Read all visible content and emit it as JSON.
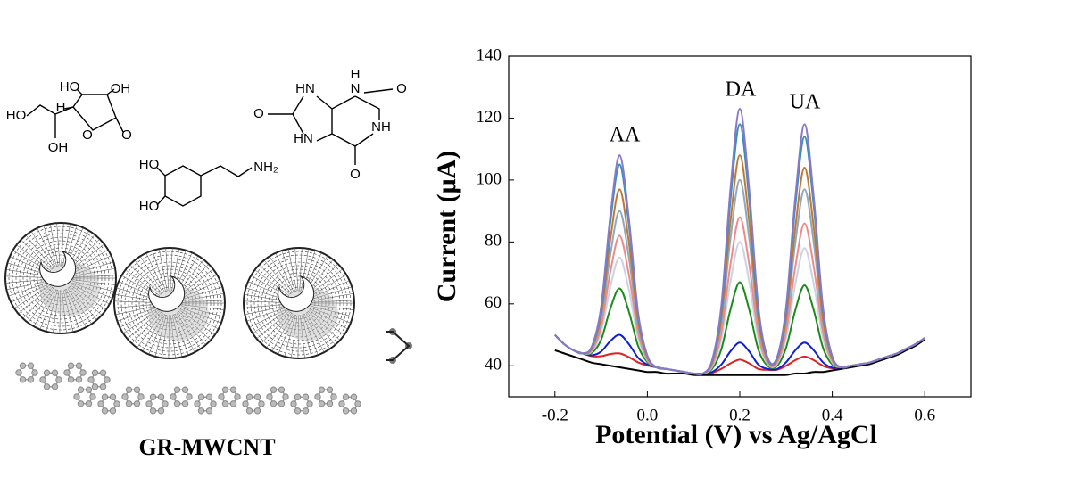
{
  "illustration": {
    "ascorbic_acid": [
      "HO",
      "OH",
      "HO",
      "H",
      "O",
      "O",
      "OH"
    ],
    "dopamine": [
      "HO",
      "HO",
      "NH₂"
    ],
    "uric_acid": [
      "HN",
      "H",
      "N",
      "O",
      "O",
      "NH",
      "HN",
      "O"
    ],
    "label": "GR-MWCNT"
  },
  "chart_data": {
    "type": "line",
    "xlabel": "Potential (V) vs Ag/AgCl",
    "ylabel": "Current (μA)",
    "annotations": [
      "AA",
      "DA",
      "UA"
    ],
    "xlim": [
      -0.3,
      0.7
    ],
    "ylim": [
      30,
      140
    ],
    "xticks": [
      -0.2,
      {
        "value": 0,
        "label": "0.0"
      },
      0.2,
      0.4,
      0.6
    ],
    "yticks": [
      40,
      60,
      80,
      100,
      120,
      140
    ],
    "x": [
      -0.2,
      -0.18,
      -0.16,
      -0.14,
      -0.12,
      -0.1,
      -0.08,
      -0.06,
      -0.04,
      -0.02,
      0,
      0.02,
      0.04,
      0.06,
      0.08,
      0.1,
      0.12,
      0.14,
      0.16,
      0.18,
      0.2,
      0.22,
      0.24,
      0.26,
      0.28,
      0.3,
      0.32,
      0.34,
      0.36,
      0.38,
      0.4,
      0.42,
      0.44,
      0.46,
      0.48,
      0.5,
      0.52,
      0.54,
      0.56,
      0.58,
      0.6
    ],
    "series": [
      {
        "color": "#000000",
        "values": [
          45,
          44,
          43,
          42,
          41,
          40.5,
          40,
          39.5,
          39,
          38.5,
          38,
          38,
          37.5,
          37.5,
          37.5,
          37,
          37,
          37,
          37,
          37,
          37,
          37,
          37,
          37,
          37,
          37,
          37.5,
          37.5,
          38,
          38,
          38.5,
          39,
          39.5,
          40,
          40.5,
          41.5,
          42.5,
          43.5,
          45,
          46.5,
          48.5
        ]
      },
      {
        "color": "#e02020",
        "values": [
          50,
          47,
          45,
          44,
          43.1,
          43.1,
          43.8,
          44,
          42.8,
          41.1,
          40.1,
          39.5,
          39,
          38.5,
          38,
          37.5,
          37.5,
          37.7,
          39,
          40.8,
          42,
          40.8,
          39,
          38.7,
          38.7,
          40,
          41.8,
          43,
          41.8,
          40,
          39.2,
          39.5,
          40,
          40.5,
          41,
          42,
          43,
          44,
          45.5,
          47,
          49
        ]
      },
      {
        "color": "#1020d0",
        "values": [
          50,
          47,
          45,
          44,
          43.4,
          44.6,
          48,
          50,
          47,
          42.6,
          40.4,
          39.5,
          39,
          38.5,
          38,
          37.5,
          37.5,
          38,
          40.4,
          44.7,
          47.5,
          44.7,
          40.4,
          39,
          38.9,
          41.1,
          45,
          47.5,
          45,
          41.1,
          39.4,
          39.5,
          40,
          40.5,
          41,
          42,
          43,
          44,
          45.5,
          47,
          49
        ]
      },
      {
        "color": "#1a8a1a",
        "values": [
          50,
          47,
          45,
          44,
          44.2,
          48.4,
          58.5,
          65,
          57.5,
          46.4,
          41.2,
          39.5,
          39,
          38.5,
          38,
          37.5,
          37.5,
          39,
          45.3,
          58.3,
          67,
          58.3,
          45.3,
          40,
          39.9,
          45.8,
          57.9,
          66,
          57.9,
          45.8,
          40.4,
          39.5,
          40,
          40.5,
          41,
          42,
          43,
          44,
          45.5,
          47,
          49
        ]
      },
      {
        "color": "#c9d3e3",
        "values": [
          50,
          47,
          45,
          44,
          44.7,
          50.9,
          65.5,
          75,
          64.5,
          48.9,
          41.7,
          39.5,
          39,
          38.5,
          38,
          37.5,
          37.5,
          39.6,
          48.5,
          67.4,
          80,
          67.4,
          48.5,
          40.6,
          40.5,
          48.8,
          66.3,
          78,
          66.3,
          48.8,
          41,
          39.5,
          40,
          40.5,
          41,
          42,
          43,
          44,
          45.5,
          47,
          49
        ]
      },
      {
        "color": "#f08a8a",
        "values": [
          50,
          47,
          45,
          44,
          45,
          52.6,
          70.4,
          82,
          69.4,
          50.6,
          42,
          39.5,
          39,
          38.5,
          38,
          37.5,
          37.5,
          40,
          50.5,
          73,
          88,
          73,
          50.5,
          41,
          40.9,
          50.8,
          71.9,
          86,
          71.9,
          50.8,
          41.4,
          39.5,
          40,
          40.5,
          41,
          42,
          43,
          44,
          45.5,
          47,
          49
        ]
      },
      {
        "color": "#8fa8c0",
        "values": [
          50,
          47,
          45,
          44,
          45.4,
          54.6,
          76,
          90,
          75,
          52.6,
          42.4,
          39.5,
          39,
          38.5,
          38,
          37.5,
          37.5,
          40.6,
          53.5,
          81.4,
          100,
          81.4,
          53.5,
          41.6,
          41.4,
          53.5,
          79.6,
          97,
          79.6,
          53.5,
          41.9,
          39.5,
          40,
          40.5,
          41,
          42,
          43,
          44,
          45.5,
          47,
          49
        ]
      },
      {
        "color": "#c07a30",
        "values": [
          50,
          47,
          45,
          44,
          45.8,
          56.4,
          80.9,
          97,
          79.9,
          54.4,
          42.8,
          39.5,
          39,
          38.5,
          38,
          37.5,
          37.5,
          41,
          55.5,
          87,
          108,
          87,
          55.5,
          42,
          41.8,
          55.3,
          84.5,
          104,
          84.5,
          55.3,
          42.3,
          39.5,
          40,
          40.5,
          41,
          42,
          43,
          44,
          45.5,
          47,
          49
        ]
      },
      {
        "color": "#3a8fb8",
        "values": [
          50,
          47,
          45,
          44,
          46.2,
          58.4,
          86.5,
          105,
          85.5,
          56.4,
          43.2,
          39.5,
          39,
          38.5,
          38,
          37.5,
          37.5,
          41.5,
          58,
          94,
          118,
          94,
          58,
          42.5,
          42.3,
          57.8,
          91.5,
          114,
          91.5,
          57.8,
          42.8,
          39.5,
          40,
          40.5,
          41,
          42,
          43,
          44,
          45.5,
          47,
          49
        ]
      },
      {
        "color": "#8878c8",
        "values": [
          50,
          47,
          45,
          44,
          46.3,
          59.1,
          88.6,
          108,
          87.6,
          57.1,
          43.3,
          39.5,
          39,
          38.5,
          38,
          37.5,
          37.5,
          41.8,
          59.3,
          97.5,
          123,
          97.5,
          59.3,
          42.8,
          42.5,
          58.8,
          94.3,
          118,
          94.3,
          58.8,
          43,
          39.5,
          40,
          40.5,
          41,
          42,
          43,
          44,
          45.5,
          47,
          49
        ]
      }
    ]
  }
}
